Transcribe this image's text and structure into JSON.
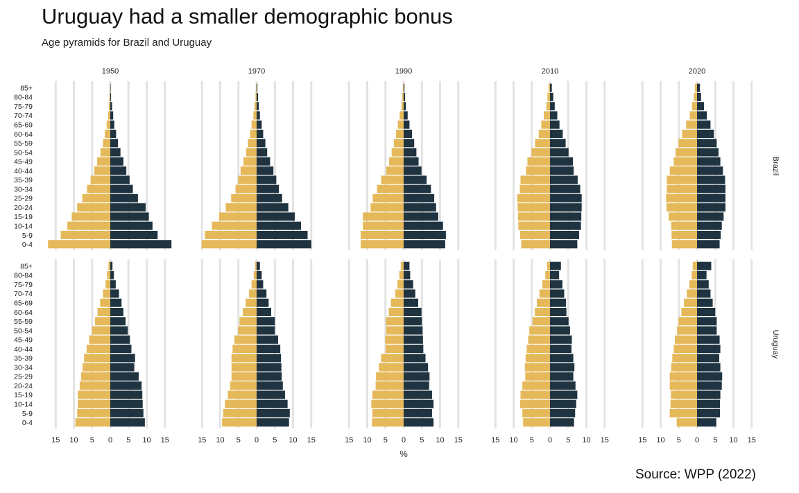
{
  "title": "Uruguay had a smaller demographic bonus",
  "subtitle": "Age pyramids for Brazil and Uruguay",
  "source": "Source: WPP (2022)",
  "colors": {
    "female": "#E5B95A",
    "male": "#1F3340",
    "grid": "#E3E3E3",
    "text": "#222222"
  },
  "chart_data": {
    "type": "bar",
    "orientation": "horizontal",
    "layout": "population pyramid small multiples",
    "xlabel": "%",
    "xlim": [
      -17,
      17
    ],
    "xticks": [
      -15,
      -10,
      -5,
      0,
      5,
      10,
      15
    ],
    "xtick_labels": [
      "15",
      "10",
      "5",
      "0",
      "5",
      "10",
      "15"
    ],
    "grid": true,
    "years": [
      "1950",
      "1970",
      "1990",
      "2010",
      "2020"
    ],
    "age_groups": [
      "85+",
      "80-84",
      "75-79",
      "70-74",
      "65-69",
      "60-64",
      "55-59",
      "50-54",
      "45-49",
      "40-44",
      "35-39",
      "30-34",
      "25-29",
      "20-24",
      "15-19",
      "10-14",
      "5-9",
      "0-4"
    ],
    "countries": [
      {
        "name": "Brazil",
        "panels": [
          {
            "year": "1950",
            "left": [
              0.1,
              0.2,
              0.4,
              0.6,
              1.0,
              1.5,
              2.0,
              2.7,
              3.6,
              4.4,
              5.4,
              6.4,
              7.7,
              9.1,
              10.6,
              11.8,
              13.6,
              17.1
            ],
            "right": [
              0.1,
              0.2,
              0.5,
              0.8,
              1.1,
              1.6,
              2.1,
              2.8,
              3.6,
              4.4,
              5.3,
              6.2,
              7.6,
              9.7,
              10.6,
              11.6,
              13.0,
              16.8
            ]
          },
          {
            "year": "1970",
            "left": [
              0.1,
              0.3,
              0.6,
              0.9,
              1.4,
              1.8,
              2.4,
              2.9,
              3.6,
              4.4,
              5.1,
              5.8,
              7.0,
              8.5,
              10.3,
              12.3,
              14.2,
              15.1
            ],
            "right": [
              0.2,
              0.4,
              0.6,
              0.9,
              1.4,
              1.8,
              2.4,
              2.9,
              3.7,
              4.6,
              5.4,
              6.1,
              7.0,
              8.7,
              10.5,
              12.2,
              14.0,
              15.0
            ]
          },
          {
            "year": "1990",
            "left": [
              0.2,
              0.4,
              0.6,
              1.1,
              1.6,
              2.1,
              2.7,
              3.3,
              4.0,
              4.8,
              6.2,
              7.3,
              8.5,
              9.1,
              11.2,
              11.2,
              11.8,
              11.8
            ],
            "right": [
              0.2,
              0.4,
              0.6,
              1.1,
              1.6,
              2.3,
              2.9,
              3.5,
              4.1,
              4.9,
              6.3,
              7.5,
              8.4,
              8.9,
              9.5,
              10.8,
              11.6,
              11.4
            ]
          },
          {
            "year": "2010",
            "left": [
              0.4,
              0.7,
              1.0,
              1.7,
              2.4,
              3.1,
              4.1,
              5.1,
              6.2,
              6.6,
              8.1,
              8.3,
              9.0,
              8.9,
              8.8,
              8.7,
              8.2,
              7.9
            ],
            "right": [
              0.5,
              0.9,
              1.3,
              2.0,
              2.6,
              3.5,
              4.3,
              5.1,
              6.3,
              6.5,
              7.6,
              8.3,
              8.7,
              8.7,
              8.6,
              8.5,
              8.0,
              7.5
            ]
          },
          {
            "year": "2020",
            "left": [
              0.6,
              0.9,
              1.4,
              2.0,
              3.0,
              4.1,
              5.1,
              5.9,
              6.4,
              7.5,
              8.3,
              8.3,
              8.5,
              8.4,
              7.8,
              7.1,
              7.0,
              6.9
            ],
            "right": [
              0.8,
              1.1,
              1.9,
              2.7,
              3.7,
              4.6,
              5.4,
              5.9,
              6.4,
              7.1,
              7.7,
              7.8,
              7.8,
              7.8,
              7.3,
              6.8,
              6.5,
              6.2
            ]
          }
        ]
      },
      {
        "name": "Uruguay",
        "panels": [
          {
            "year": "1950",
            "left": [
              0.5,
              0.9,
              1.3,
              2.0,
              2.8,
              3.5,
              4.2,
              5.0,
              5.8,
              6.5,
              7.2,
              7.6,
              8.0,
              8.4,
              8.9,
              8.9,
              9.1,
              9.6
            ],
            "right": [
              0.6,
              1.0,
              1.5,
              2.4,
              3.1,
              3.6,
              4.2,
              4.8,
              5.4,
              5.8,
              6.8,
              6.6,
              7.8,
              8.6,
              8.8,
              8.9,
              9.1,
              9.5
            ]
          },
          {
            "year": "1970",
            "left": [
              0.4,
              0.8,
              1.4,
              2.1,
              3.0,
              3.8,
              4.7,
              5.1,
              6.1,
              6.6,
              6.9,
              6.9,
              6.9,
              7.3,
              7.9,
              8.7,
              9.2,
              9.5
            ],
            "right": [
              0.9,
              1.4,
              1.8,
              2.7,
              3.3,
              4.0,
              5.0,
              5.0,
              5.9,
              6.5,
              6.7,
              6.8,
              6.9,
              7.2,
              7.8,
              8.5,
              9.1,
              8.9
            ]
          },
          {
            "year": "1990",
            "left": [
              0.8,
              1.2,
              1.7,
              2.3,
              3.5,
              4.1,
              4.9,
              4.8,
              5.1,
              5.0,
              6.2,
              6.8,
              7.6,
              7.7,
              8.6,
              8.9,
              8.6,
              8.7
            ],
            "right": [
              1.6,
              1.8,
              2.6,
              3.2,
              4.0,
              4.9,
              5.0,
              5.2,
              5.3,
              5.4,
              6.0,
              6.7,
              7.1,
              7.0,
              7.8,
              8.2,
              7.8,
              8.2
            ]
          },
          {
            "year": "2010",
            "left": [
              0.8,
              1.3,
              2.1,
              2.9,
              3.6,
              4.2,
              4.8,
              5.7,
              6.0,
              6.4,
              6.7,
              6.9,
              6.8,
              7.6,
              8.1,
              8.2,
              7.6,
              7.4
            ],
            "right": [
              3.0,
              2.5,
              3.4,
              3.9,
              4.4,
              4.5,
              5.1,
              5.5,
              6.0,
              5.9,
              6.4,
              6.7,
              6.4,
              7.0,
              7.5,
              7.2,
              6.9,
              6.6
            ]
          },
          {
            "year": "2020",
            "left": [
              1.2,
              1.5,
              2.1,
              2.8,
              3.6,
              4.3,
              5.1,
              5.5,
              6.1,
              6.4,
              6.8,
              7.1,
              7.5,
              7.5,
              7.2,
              7.3,
              7.5,
              5.6
            ],
            "right": [
              3.9,
              2.6,
              3.2,
              3.7,
              4.3,
              5.0,
              5.4,
              5.4,
              6.2,
              6.4,
              6.1,
              6.4,
              6.9,
              6.8,
              6.4,
              6.3,
              6.3,
              5.3
            ]
          }
        ]
      }
    ]
  }
}
